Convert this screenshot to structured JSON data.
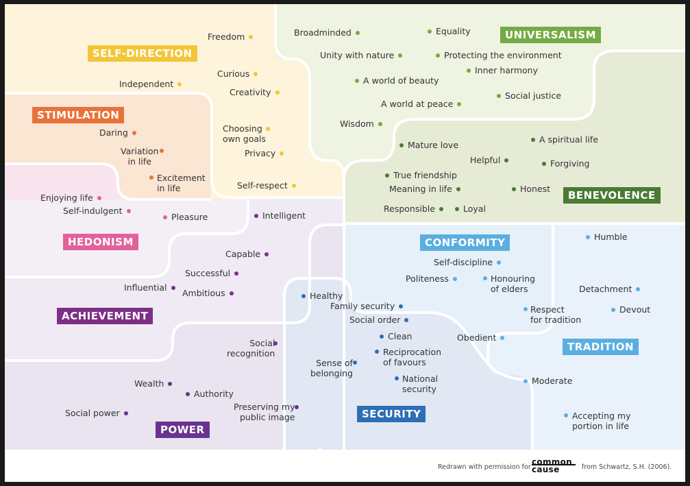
{
  "categories": {
    "self_direction": "SELF-DIRECTION",
    "stimulation": "STIMULATION",
    "hedonism": "HEDONISM",
    "achievement": "ACHIEVEMENT",
    "power": "POWER",
    "security": "SECURITY",
    "conformity": "CONFORMITY",
    "tradition": "TRADITION",
    "benevolence": "BENEVOLENCE",
    "universalism": "UNIVERSALISM"
  },
  "colors": {
    "self_direction": "#f2c638",
    "stimulation": "#e8733a",
    "hedonism": "#e2619b",
    "achievement": "#7d2f86",
    "power": "#6a3390",
    "security": "#2d6eb5",
    "conformity": "#5aaee0",
    "tradition": "#5aaee0",
    "benevolence": "#4a7a34",
    "universalism": "#74ab44"
  },
  "values": {
    "freedom": "Freedom",
    "independent": "Independent",
    "curious": "Curious",
    "creativity": "Creativity",
    "choosing": "Choosing\nown goals",
    "privacy": "Privacy",
    "self_respect": "Self-respect",
    "daring": "Daring",
    "variation": "Variation\nin life",
    "excitement": "Excitement\nin life",
    "enjoying": "Enjoying life",
    "self_indulgent": "Self-indulgent",
    "pleasure": "Pleasure",
    "intelligent": "Intelligent",
    "capable": "Capable",
    "successful": "Successful",
    "influential": "Influential",
    "ambitious": "Ambitious",
    "social_recognition": "Social\nrecognition",
    "wealth": "Wealth",
    "authority": "Authority",
    "social_power": "Social power",
    "preserving": "Preserving my\npublic image",
    "healthy": "Healthy",
    "family_security": "Family security",
    "social_order": "Social order",
    "clean": "Clean",
    "reciprocation": "Reciprocation\nof favours",
    "belonging": "Sense of\nbelonging",
    "national_security": "National\nsecurity",
    "self_discipline": "Self-discipline",
    "politeness": "Politeness",
    "honouring": "Honouring\nof elders",
    "obedient": "Obedient",
    "humble": "Humble",
    "detachment": "Detachment",
    "respect_tradition": "Respect\nfor tradition",
    "devout": "Devout",
    "moderate": "Moderate",
    "accepting": "Accepting my\nportion in life",
    "broadminded": "Broadminded",
    "equality": "Equality",
    "unity_nature": "Unity with nature",
    "protecting": "Protecting the environment",
    "inner_harmony": "Inner harmony",
    "world_beauty": "A world of beauty",
    "social_justice": "Social justice",
    "world_peace": "A world at peace",
    "wisdom": "Wisdom",
    "mature_love": "Mature love",
    "spiritual_life": "A spiritual life",
    "helpful": "Helpful",
    "forgiving": "Forgiving",
    "true_friendship": "True friendship",
    "meaning": "Meaning in life",
    "honest": "Honest",
    "responsible": "Responsible",
    "loyal": "Loyal"
  },
  "footer": {
    "credit_left": "Redrawn with permission for",
    "logo_line1": "common",
    "logo_line2": "cause",
    "credit_right": "from Schwartz, S.H. (2006)."
  }
}
